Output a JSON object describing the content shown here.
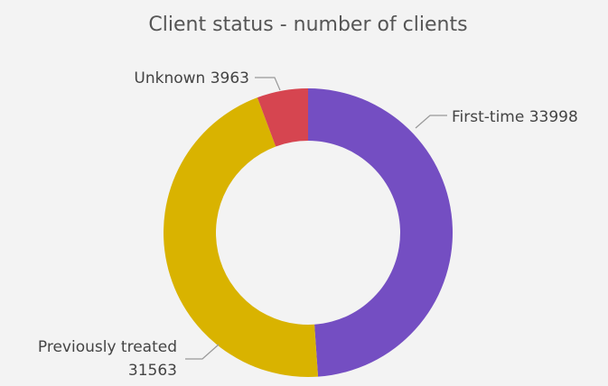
{
  "chart_data": {
    "type": "donut",
    "title": "Client status - number of clients",
    "categories": [
      "First-time",
      "Previously treated",
      "Unknown"
    ],
    "values": [
      33998,
      31563,
      3963
    ],
    "colors": [
      "#744ec2",
      "#d9b300",
      "#d64550"
    ]
  }
}
